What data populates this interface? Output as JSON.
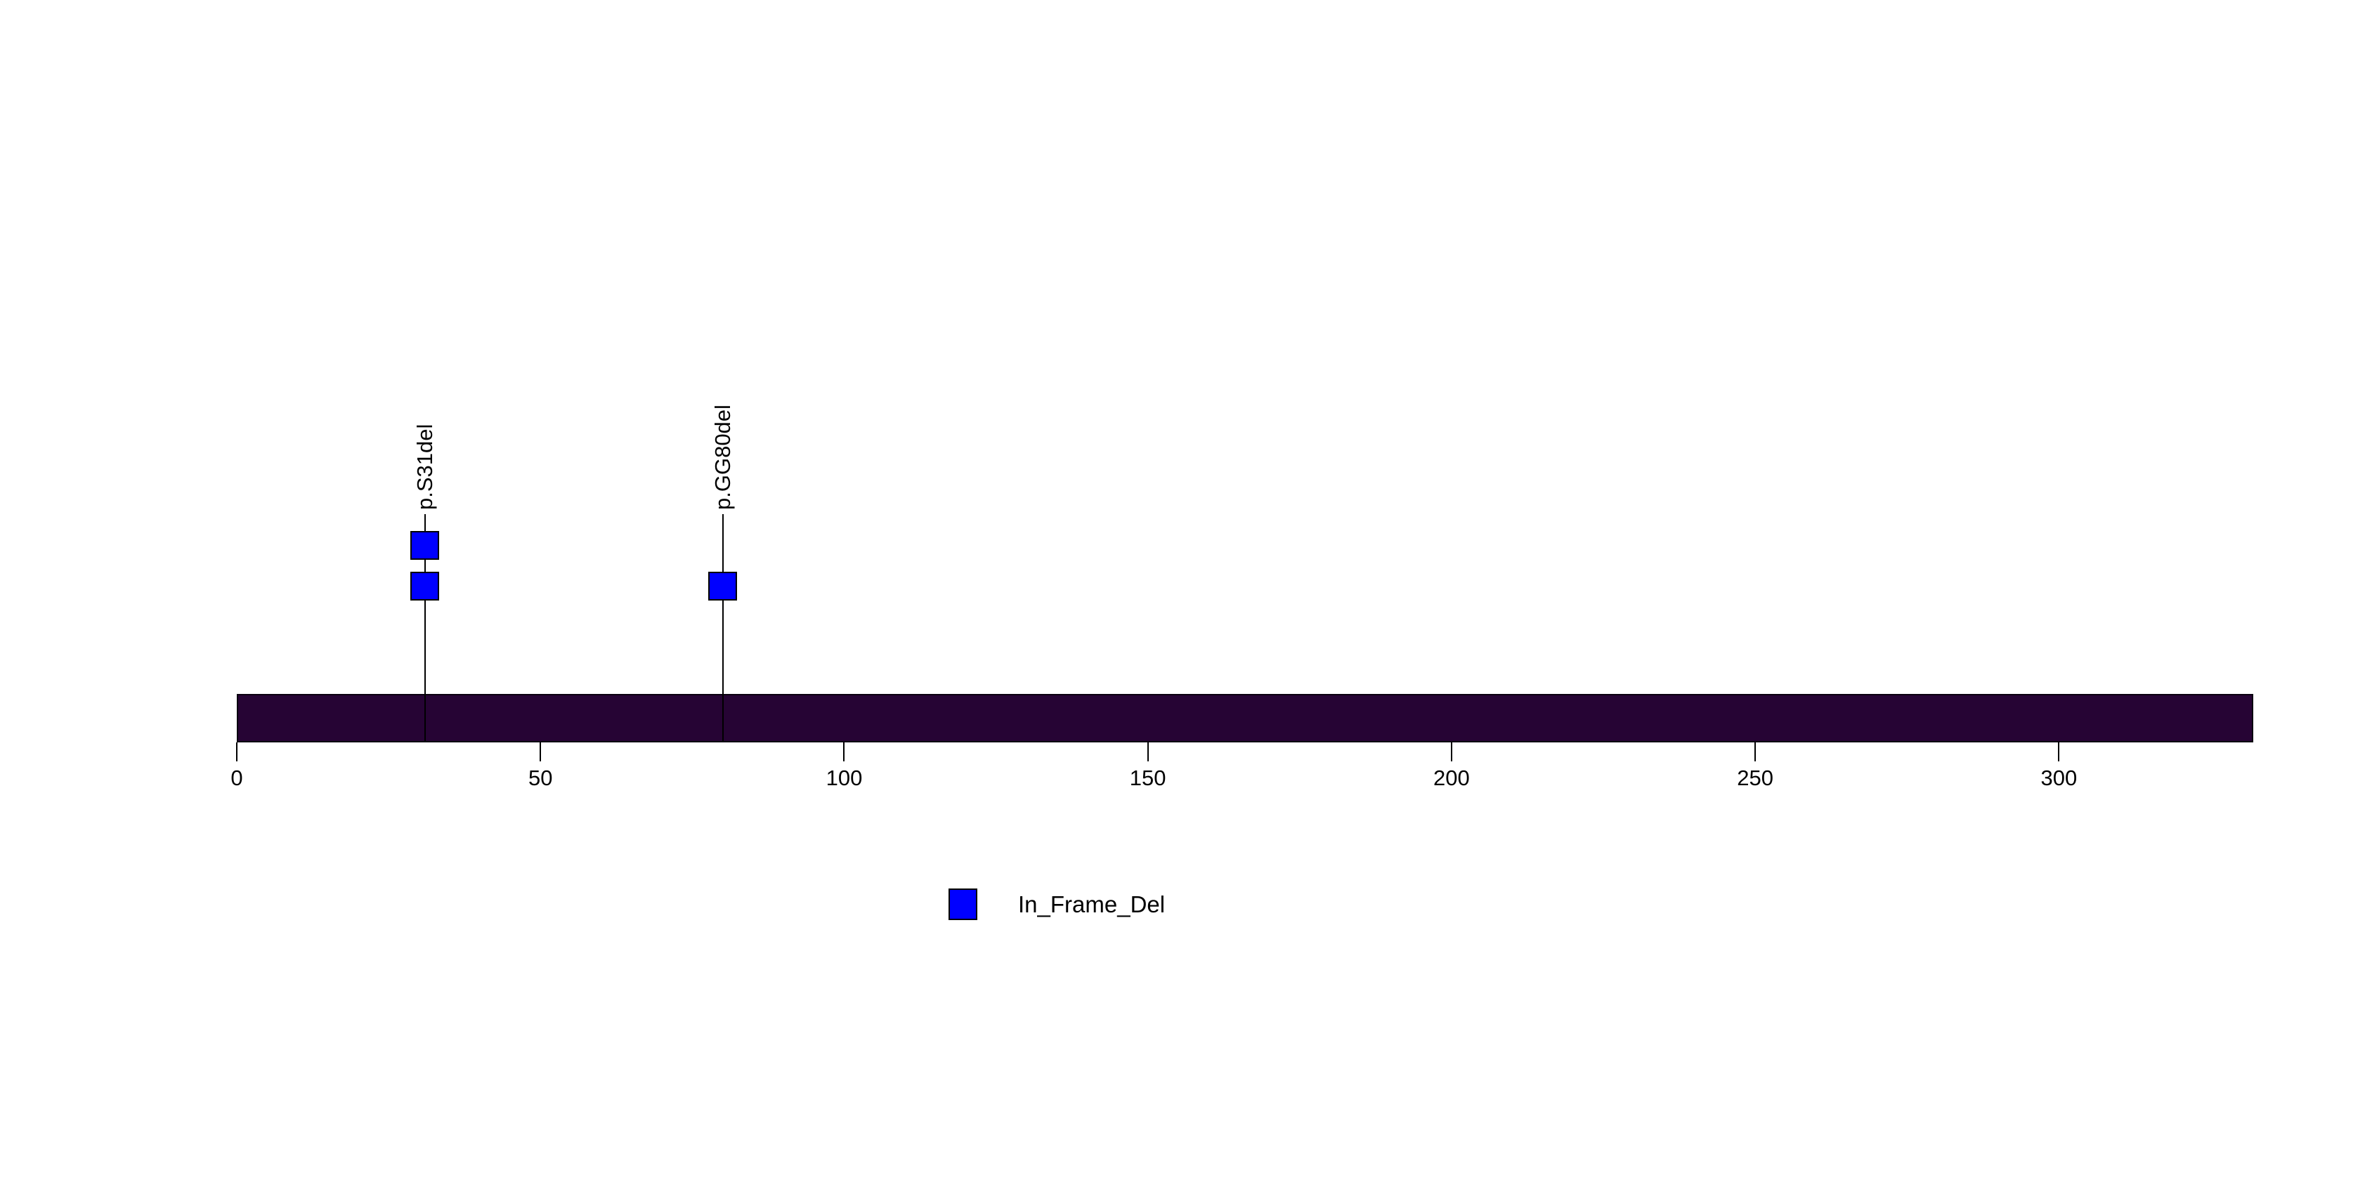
{
  "chart_data": {
    "type": "scatter",
    "subtype": "lollipop_mutation_plot",
    "title": "",
    "xlabel": "",
    "ylabel": "",
    "xlim": [
      0,
      332
    ],
    "x_ticks": [
      0,
      50,
      100,
      150,
      200,
      250,
      300
    ],
    "grid": false,
    "background_color": "#ffffff",
    "protein_bar": {
      "start_aa": 0,
      "end_aa": 332,
      "fill_color": "#260434",
      "border_color": "#0a0010"
    },
    "mutations": [
      {
        "label": "p.S31del",
        "position_aa": 31,
        "count": 2,
        "variant_class": "In_Frame_Del",
        "color": "#0000ff"
      },
      {
        "label": "p.GG80del",
        "position_aa": 80,
        "count": 1,
        "variant_class": "In_Frame_Del",
        "color": "#0000ff"
      }
    ],
    "legend": {
      "position": "bottom-center",
      "items": [
        {
          "label": "In_Frame_Del",
          "color": "#0000ff"
        }
      ]
    },
    "colors": {
      "stem": "#000000",
      "axis_text": "#000000",
      "marker_border": "#000000"
    }
  }
}
